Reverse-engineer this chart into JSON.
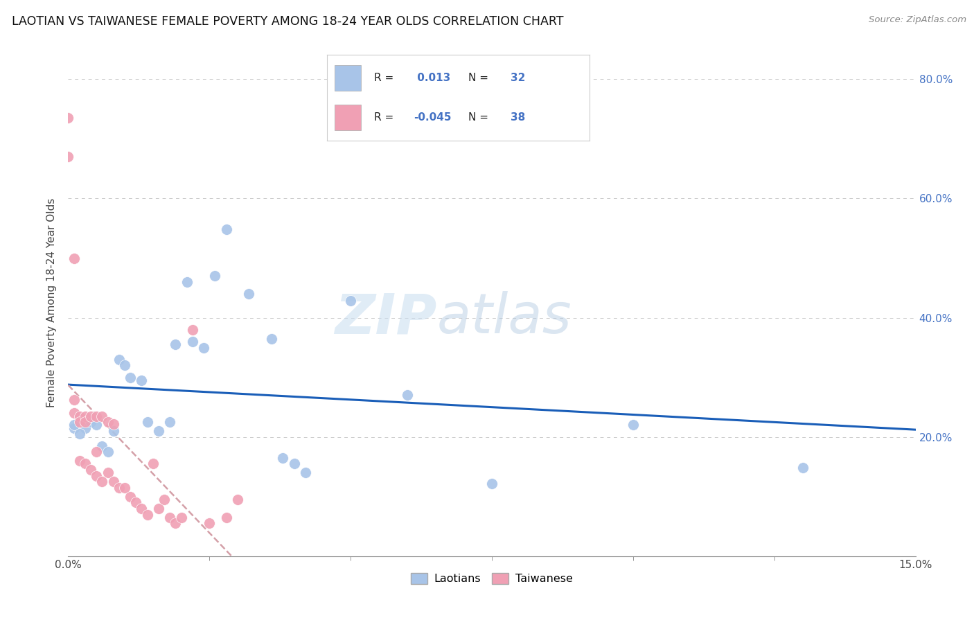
{
  "title": "LAOTIAN VS TAIWANESE FEMALE POVERTY AMONG 18-24 YEAR OLDS CORRELATION CHART",
  "source": "Source: ZipAtlas.com",
  "ylabel": "Female Poverty Among 18-24 Year Olds",
  "xlim": [
    0.0,
    0.15
  ],
  "ylim": [
    0.0,
    0.85
  ],
  "xtick_positions": [
    0.0,
    0.15
  ],
  "xtick_labels": [
    "0.0%",
    "15.0%"
  ],
  "ytick_positions": [
    0.2,
    0.4,
    0.6,
    0.8
  ],
  "ytick_labels": [
    "20.0%",
    "40.0%",
    "60.0%",
    "80.0%"
  ],
  "laotian_x": [
    0.003,
    0.001,
    0.001,
    0.002,
    0.004,
    0.005,
    0.006,
    0.007,
    0.008,
    0.009,
    0.01,
    0.011,
    0.013,
    0.014,
    0.016,
    0.018,
    0.019,
    0.021,
    0.022,
    0.024,
    0.026,
    0.028,
    0.032,
    0.036,
    0.038,
    0.04,
    0.042,
    0.05,
    0.06,
    0.075,
    0.1,
    0.13
  ],
  "laotian_y": [
    0.215,
    0.215,
    0.22,
    0.205,
    0.225,
    0.22,
    0.185,
    0.175,
    0.21,
    0.33,
    0.32,
    0.3,
    0.295,
    0.225,
    0.21,
    0.225,
    0.355,
    0.46,
    0.36,
    0.35,
    0.47,
    0.548,
    0.44,
    0.365,
    0.165,
    0.155,
    0.14,
    0.428,
    0.27,
    0.122,
    0.22,
    0.148
  ],
  "taiwanese_x": [
    0.0,
    0.0,
    0.001,
    0.001,
    0.001,
    0.002,
    0.002,
    0.002,
    0.003,
    0.003,
    0.003,
    0.004,
    0.004,
    0.005,
    0.005,
    0.005,
    0.006,
    0.006,
    0.007,
    0.007,
    0.008,
    0.008,
    0.009,
    0.01,
    0.011,
    0.012,
    0.013,
    0.014,
    0.015,
    0.016,
    0.017,
    0.018,
    0.019,
    0.02,
    0.022,
    0.025,
    0.028,
    0.03
  ],
  "taiwanese_y": [
    0.735,
    0.67,
    0.5,
    0.262,
    0.24,
    0.235,
    0.225,
    0.16,
    0.235,
    0.225,
    0.155,
    0.235,
    0.145,
    0.235,
    0.175,
    0.135,
    0.235,
    0.125,
    0.225,
    0.14,
    0.222,
    0.125,
    0.115,
    0.115,
    0.1,
    0.09,
    0.08,
    0.07,
    0.155,
    0.08,
    0.095,
    0.065,
    0.055,
    0.065,
    0.38,
    0.055,
    0.065,
    0.095
  ],
  "laotian_color": "#a8c4e8",
  "taiwanese_color": "#f0a0b4",
  "laotian_trend_color": "#1a5eb8",
  "taiwanese_trend_color": "#d4a0a8",
  "laotian_R": 0.013,
  "laotian_N": 32,
  "taiwanese_R": -0.045,
  "taiwanese_N": 38,
  "watermark_zip": "ZIP",
  "watermark_atlas": "atlas",
  "background_color": "#ffffff",
  "grid_color": "#cccccc",
  "legend_box_color": "#ffffff",
  "legend_border_color": "#cccccc"
}
